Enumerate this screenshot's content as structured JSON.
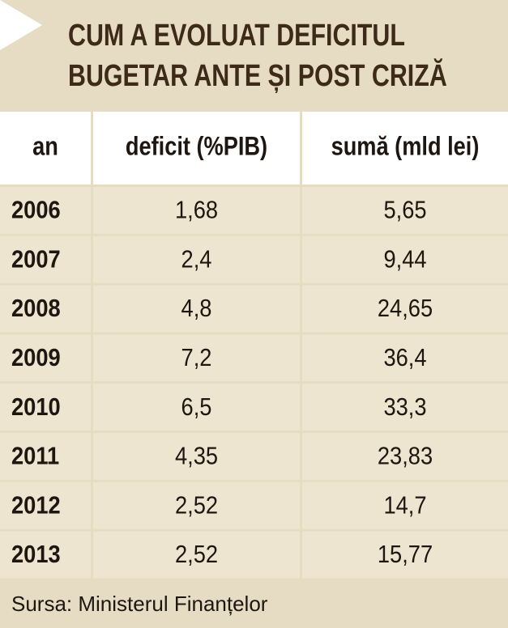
{
  "header": {
    "title_lines": [
      "CUM A EVOLUAT DEFICITUL",
      "BUGETAR ANTE ȘI POST CRIZĂ"
    ]
  },
  "table": {
    "columns": [
      "an",
      "deficit (%PIB)",
      "sumă (mld lei)"
    ],
    "rows": [
      [
        "2006",
        "1,68",
        "5,65"
      ],
      [
        "2007",
        "2,4",
        "9,44"
      ],
      [
        "2008",
        "4,8",
        "24,65"
      ],
      [
        "2009",
        "7,2",
        "36,4"
      ],
      [
        "2010",
        "6,5",
        "33,3"
      ],
      [
        "2011",
        "4,35",
        "23,83"
      ],
      [
        "2012",
        "2,52",
        "14,7"
      ],
      [
        "2013",
        "2,52",
        "15,77"
      ]
    ]
  },
  "footer": {
    "source": "Sursa: Ministerul Finanțelor"
  }
}
